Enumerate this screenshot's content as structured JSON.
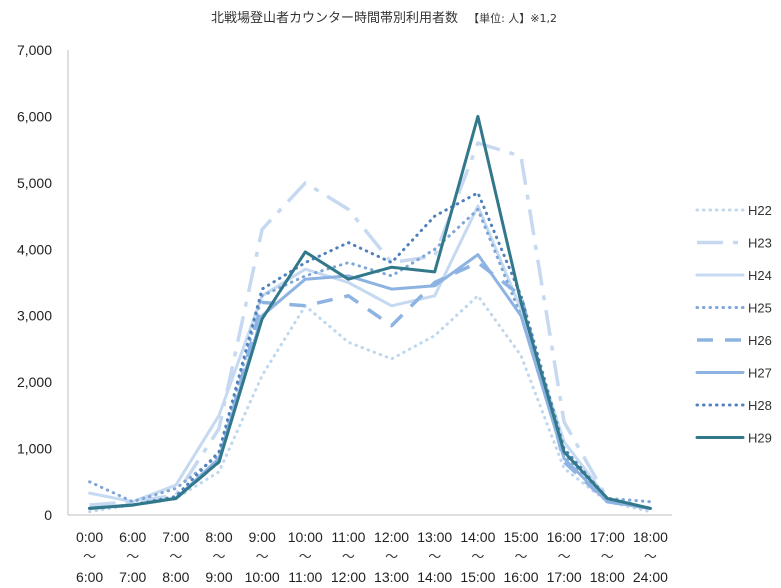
{
  "chart_data": {
    "type": "line",
    "title": "北戦場登山者カウンター時間帯別利用者数",
    "title_suffix": "【単位: 人】※1,2",
    "x_start": [
      "0:00",
      "6:00",
      "7:00",
      "8:00",
      "9:00",
      "10:00",
      "11:00",
      "12:00",
      "13:00",
      "14:00",
      "15:00",
      "16:00",
      "17:00",
      "18:00"
    ],
    "x_end": [
      "6:00",
      "7:00",
      "8:00",
      "9:00",
      "10:00",
      "11:00",
      "12:00",
      "13:00",
      "14:00",
      "15:00",
      "16:00",
      "17:00",
      "18:00",
      "24:00"
    ],
    "range_mark": "～",
    "ylim": [
      0,
      7000
    ],
    "yticks": [
      "0",
      "1,000",
      "2,000",
      "3,000",
      "4,000",
      "5,000",
      "6,000",
      "7,000"
    ],
    "grid": false,
    "legend_position": "right",
    "series": [
      {
        "name": "H22",
        "color": "#bdd7ee",
        "style": "dot",
        "values": [
          50,
          150,
          250,
          650,
          2100,
          3150,
          2600,
          2350,
          2700,
          3300,
          2400,
          700,
          200,
          50
        ]
      },
      {
        "name": "H23",
        "color": "#c6d9f1",
        "style": "longdash",
        "values": [
          150,
          200,
          300,
          1300,
          4300,
          5000,
          4600,
          3800,
          3900,
          5600,
          5400,
          1400,
          250,
          100
        ]
      },
      {
        "name": "H24",
        "color": "#c5d9f1",
        "style": "solid",
        "values": [
          330,
          200,
          450,
          1500,
          3300,
          3700,
          3500,
          3150,
          3300,
          4650,
          3100,
          1100,
          250,
          100
        ]
      },
      {
        "name": "H25",
        "color": "#7ea6d8",
        "style": "dot",
        "values": [
          500,
          200,
          400,
          900,
          3300,
          3600,
          3800,
          3600,
          4000,
          4600,
          3000,
          900,
          250,
          200
        ]
      },
      {
        "name": "H26",
        "color": "#8db3e2",
        "style": "dash",
        "values": [
          100,
          150,
          250,
          800,
          3200,
          3150,
          3300,
          2850,
          3500,
          3800,
          3300,
          800,
          200,
          100
        ]
      },
      {
        "name": "H27",
        "color": "#8db3e2",
        "style": "solid",
        "values": [
          100,
          150,
          250,
          850,
          3000,
          3550,
          3600,
          3400,
          3450,
          3920,
          3000,
          850,
          200,
          100
        ]
      },
      {
        "name": "H28",
        "color": "#4f81bd",
        "style": "dot",
        "values": [
          100,
          150,
          280,
          950,
          3400,
          3800,
          4100,
          3800,
          4500,
          4850,
          3300,
          1000,
          250,
          100
        ]
      },
      {
        "name": "H29",
        "color": "#31788a",
        "style": "solid",
        "values": [
          100,
          150,
          250,
          800,
          2950,
          3960,
          3550,
          3730,
          3660,
          6000,
          3200,
          950,
          250,
          100
        ]
      }
    ]
  }
}
